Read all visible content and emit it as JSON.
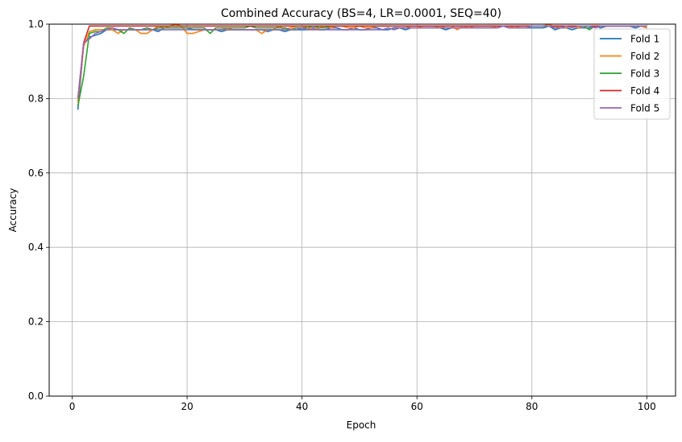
{
  "chart_data": {
    "type": "line",
    "title": "Combined Accuracy (BS=4, LR=0.0001, SEQ=40)",
    "xlabel": "Epoch",
    "ylabel": "Accuracy",
    "xlim": [
      -4,
      105
    ],
    "ylim": [
      0,
      1.0
    ],
    "xticks": [
      0,
      20,
      40,
      60,
      80,
      100
    ],
    "yticks": [
      0.0,
      0.2,
      0.4,
      0.6,
      0.8,
      1.0
    ],
    "xtick_labels": [
      "0",
      "20",
      "40",
      "60",
      "80",
      "100"
    ],
    "ytick_labels": [
      "0.0",
      "0.2",
      "0.4",
      "0.6",
      "0.8",
      "1.0"
    ],
    "grid": true,
    "legend_position": "top-right",
    "x": [
      1,
      2,
      3,
      4,
      5,
      6,
      7,
      8,
      9,
      10,
      11,
      12,
      13,
      14,
      15,
      16,
      17,
      18,
      19,
      20,
      21,
      22,
      23,
      24,
      25,
      26,
      27,
      28,
      29,
      30,
      31,
      32,
      33,
      34,
      35,
      36,
      37,
      38,
      39,
      40,
      41,
      42,
      43,
      44,
      45,
      46,
      47,
      48,
      49,
      50,
      51,
      52,
      53,
      54,
      55,
      56,
      57,
      58,
      59,
      60,
      61,
      62,
      63,
      64,
      65,
      66,
      67,
      68,
      69,
      70,
      71,
      72,
      73,
      74,
      75,
      76,
      77,
      78,
      79,
      80,
      81,
      82,
      83,
      84,
      85,
      86,
      87,
      88,
      89,
      90,
      91,
      92,
      93,
      94,
      95,
      96,
      97,
      98,
      99,
      100
    ],
    "series": [
      {
        "name": "Fold 1",
        "color": "#1f77b4",
        "values": [
          0.77,
          0.945,
          0.965,
          0.97,
          0.975,
          0.985,
          0.985,
          0.985,
          0.985,
          0.985,
          0.985,
          0.985,
          0.985,
          0.985,
          0.98,
          0.99,
          0.99,
          0.99,
          0.99,
          0.99,
          0.985,
          0.985,
          0.985,
          0.985,
          0.985,
          0.98,
          0.985,
          0.985,
          0.985,
          0.985,
          0.985,
          0.985,
          0.985,
          0.98,
          0.985,
          0.985,
          0.98,
          0.985,
          0.985,
          0.985,
          0.985,
          0.99,
          0.985,
          0.985,
          0.99,
          0.99,
          0.985,
          0.985,
          0.99,
          0.985,
          0.985,
          0.99,
          0.99,
          0.985,
          0.985,
          0.99,
          0.99,
          0.985,
          0.99,
          0.99,
          0.99,
          0.99,
          0.99,
          0.99,
          0.985,
          0.99,
          0.99,
          0.99,
          0.99,
          0.99,
          0.99,
          0.99,
          0.99,
          0.99,
          0.995,
          0.99,
          0.99,
          0.99,
          0.99,
          0.99,
          0.99,
          0.99,
          0.995,
          0.985,
          0.99,
          0.99,
          0.985,
          0.99,
          0.99,
          0.99,
          0.995,
          0.99,
          0.995,
          0.995,
          0.995,
          0.995,
          0.995,
          0.99,
          0.995,
          0.995
        ]
      },
      {
        "name": "Fold 2",
        "color": "#ff7f0e",
        "values": [
          0.79,
          0.94,
          0.98,
          0.985,
          0.985,
          0.985,
          0.985,
          0.975,
          0.985,
          0.985,
          0.985,
          0.975,
          0.975,
          0.985,
          0.995,
          0.99,
          0.995,
          1.0,
          0.995,
          0.975,
          0.975,
          0.98,
          0.985,
          0.985,
          0.985,
          0.985,
          0.99,
          0.985,
          0.985,
          0.985,
          0.985,
          0.985,
          0.975,
          0.985,
          0.985,
          0.995,
          0.985,
          0.99,
          0.995,
          0.995,
          0.99,
          0.985,
          0.99,
          0.995,
          0.99,
          0.995,
          0.995,
          0.99,
          0.99,
          0.995,
          0.99,
          0.99,
          0.995,
          0.995,
          0.995,
          0.995,
          0.995,
          0.995,
          0.99,
          0.99,
          0.995,
          0.995,
          0.995,
          0.99,
          0.995,
          0.995,
          0.985,
          0.995,
          0.99,
          0.995,
          0.995,
          0.995,
          0.995,
          0.99,
          0.995,
          0.995,
          0.99,
          0.995,
          0.995,
          0.995,
          0.995,
          0.995,
          1.0,
          0.99,
          0.995,
          0.99,
          0.995,
          0.99,
          0.995,
          0.995,
          0.995,
          0.995,
          0.995,
          0.995,
          0.995,
          0.995,
          0.995,
          0.995,
          0.995,
          0.99
        ]
      },
      {
        "name": "Fold 3",
        "color": "#2ca02c",
        "values": [
          0.78,
          0.86,
          0.975,
          0.98,
          0.98,
          0.99,
          0.99,
          0.985,
          0.975,
          0.99,
          0.985,
          0.985,
          0.99,
          0.985,
          0.99,
          0.99,
          0.99,
          0.99,
          0.99,
          0.99,
          0.99,
          0.99,
          0.99,
          0.975,
          0.99,
          0.99,
          0.99,
          0.99,
          0.99,
          0.99,
          0.995,
          0.99,
          0.99,
          0.99,
          0.99,
          0.99,
          0.99,
          0.985,
          0.99,
          0.99,
          0.99,
          0.995,
          0.99,
          0.99,
          0.995,
          0.995,
          0.995,
          0.995,
          0.995,
          0.995,
          0.995,
          0.995,
          0.995,
          0.995,
          0.995,
          0.995,
          0.995,
          0.995,
          0.995,
          0.995,
          0.995,
          0.995,
          0.995,
          0.995,
          0.995,
          0.995,
          0.995,
          0.995,
          0.995,
          0.995,
          0.995,
          0.995,
          0.995,
          0.995,
          0.995,
          0.995,
          0.995,
          0.995,
          0.995,
          0.995,
          0.995,
          0.995,
          0.995,
          0.995,
          0.995,
          0.995,
          0.995,
          0.995,
          0.995,
          0.985,
          0.995,
          0.995,
          0.995,
          0.995,
          0.995,
          0.995,
          0.995,
          0.995,
          0.995,
          0.995
        ]
      },
      {
        "name": "Fold 4",
        "color": "#d62728",
        "values": [
          0.8,
          0.95,
          0.995,
          0.995,
          0.995,
          0.995,
          0.995,
          0.995,
          0.995,
          0.995,
          0.995,
          0.995,
          0.995,
          0.995,
          0.995,
          0.995,
          0.995,
          0.995,
          0.995,
          0.995,
          0.995,
          0.995,
          0.995,
          0.995,
          0.995,
          0.995,
          0.995,
          0.995,
          0.995,
          0.995,
          0.995,
          0.995,
          0.995,
          0.995,
          0.995,
          0.995,
          0.995,
          0.995,
          0.995,
          0.995,
          0.995,
          0.995,
          0.995,
          0.995,
          0.995,
          0.995,
          0.995,
          0.995,
          0.995,
          0.995,
          0.995,
          0.995,
          0.995,
          0.995,
          0.995,
          0.995,
          0.995,
          0.995,
          0.995,
          0.995,
          0.995,
          0.995,
          0.995,
          0.995,
          0.995,
          0.995,
          0.995,
          0.995,
          0.995,
          0.995,
          0.995,
          0.995,
          0.995,
          0.995,
          0.995,
          0.995,
          0.995,
          0.995,
          0.995,
          0.995,
          0.995,
          0.995,
          0.995,
          0.995,
          0.995,
          0.995,
          0.995,
          0.995,
          0.995,
          0.995,
          0.995,
          0.995,
          0.995,
          0.995,
          0.995,
          0.995,
          0.995,
          0.995,
          0.995,
          0.995
        ]
      },
      {
        "name": "Fold 5",
        "color": "#9467bd",
        "values": [
          0.8,
          0.95,
          0.96,
          0.975,
          0.98,
          0.985,
          0.99,
          0.985,
          0.985,
          0.985,
          0.985,
          0.985,
          0.985,
          0.985,
          0.985,
          0.985,
          0.985,
          0.985,
          0.985,
          0.985,
          0.985,
          0.985,
          0.985,
          0.985,
          0.985,
          0.985,
          0.985,
          0.985,
          0.985,
          0.985,
          0.985,
          0.985,
          0.985,
          0.985,
          0.985,
          0.985,
          0.985,
          0.985,
          0.985,
          0.99,
          0.985,
          0.985,
          0.985,
          0.985,
          0.985,
          0.985,
          0.985,
          0.985,
          0.985,
          0.985,
          0.985,
          0.985,
          0.985,
          0.985,
          0.99,
          0.985,
          0.99,
          0.99,
          0.99,
          0.99,
          0.99,
          0.99,
          0.99,
          0.99,
          0.99,
          0.99,
          0.99,
          0.99,
          0.99,
          0.99,
          0.99,
          0.99,
          0.99,
          0.99,
          0.995,
          0.99,
          0.99,
          0.99,
          0.99,
          0.995,
          0.995,
          0.995,
          0.995,
          0.99,
          0.99,
          0.995,
          0.99,
          0.995,
          0.995,
          0.995,
          0.99,
          0.995,
          0.995,
          0.995,
          0.995,
          0.995,
          0.995,
          0.995,
          0.995,
          0.995
        ]
      }
    ]
  }
}
